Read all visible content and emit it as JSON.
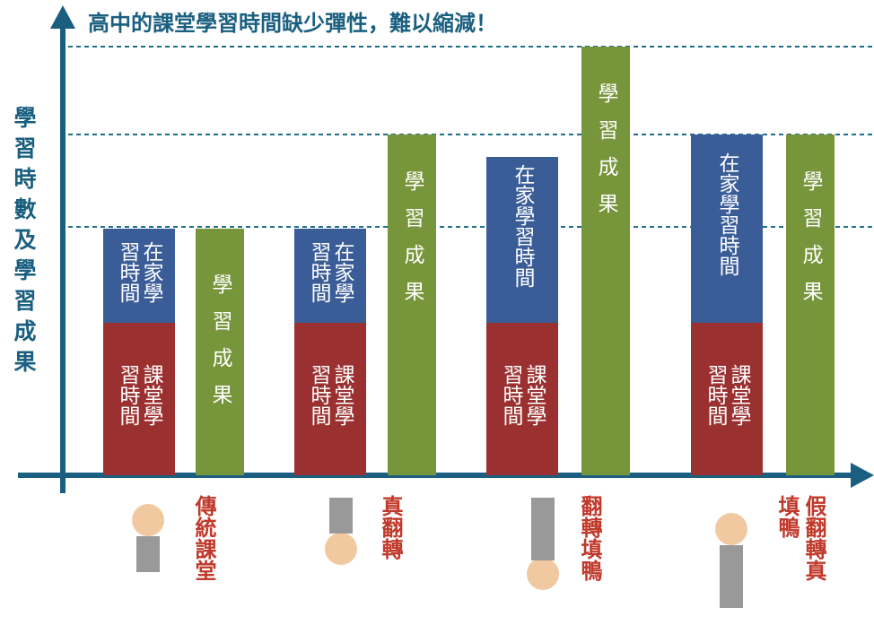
{
  "title": "高中的課堂學習時間缺少彈性，難以縮減！",
  "y_axis_label": "學習時數及學習成果",
  "groups": [
    {
      "classroom": "課堂學習時間",
      "home": "在家學習時間",
      "outcome": "學習成果",
      "label": "傳統課堂"
    },
    {
      "classroom": "課堂學習時間",
      "home": "在家學習時間",
      "outcome": "學習成果",
      "label": "真翻轉"
    },
    {
      "classroom": "課堂學習時間",
      "home": "在家學習時間",
      "outcome": "學習成果",
      "label": "翻轉填鴨"
    },
    {
      "classroom": "課堂學習時間",
      "home": "在家學習時間",
      "outcome": "學習成果",
      "label": "假翻轉真填鴨"
    }
  ]
}
